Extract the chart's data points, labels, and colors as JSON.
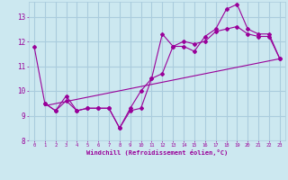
{
  "xlabel": "Windchill (Refroidissement éolien,°C)",
  "background_color": "#cce8f0",
  "grid_color": "#aaccdd",
  "line_color": "#990099",
  "xlim": [
    -0.5,
    23.5
  ],
  "ylim": [
    8,
    13.6
  ],
  "yticks": [
    8,
    9,
    10,
    11,
    12,
    13
  ],
  "xticks": [
    0,
    1,
    2,
    3,
    4,
    5,
    6,
    7,
    8,
    9,
    10,
    11,
    12,
    13,
    14,
    15,
    16,
    17,
    18,
    19,
    20,
    21,
    22,
    23
  ],
  "series1_x": [
    0,
    1,
    2,
    3,
    4,
    5,
    6,
    7,
    8,
    9,
    10,
    11,
    12,
    13,
    14,
    15,
    16,
    17,
    18,
    19,
    20,
    21,
    22,
    23
  ],
  "series1_y": [
    11.8,
    9.5,
    9.2,
    9.8,
    9.2,
    9.3,
    9.3,
    9.3,
    8.5,
    9.3,
    10.0,
    10.5,
    12.3,
    11.8,
    11.8,
    11.6,
    12.2,
    12.5,
    13.3,
    13.5,
    12.5,
    12.3,
    12.3,
    11.3
  ],
  "series2_x": [
    1,
    2,
    3,
    4,
    5,
    6,
    7,
    8,
    9,
    10,
    11,
    12,
    13,
    14,
    15,
    16,
    17,
    18,
    19,
    20,
    21,
    22,
    23
  ],
  "series2_y": [
    9.5,
    9.2,
    9.6,
    9.2,
    9.3,
    9.3,
    9.3,
    8.5,
    9.2,
    9.3,
    10.5,
    10.7,
    11.8,
    12.0,
    11.9,
    12.0,
    12.4,
    12.5,
    12.6,
    12.3,
    12.2,
    12.2,
    11.3
  ],
  "series3_x": [
    1,
    23
  ],
  "series3_y": [
    9.4,
    11.3
  ]
}
